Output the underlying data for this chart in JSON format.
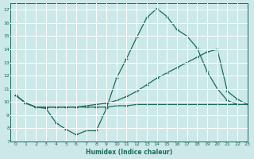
{
  "xlabel": "Humidex (Indice chaleur)",
  "xlim": [
    -0.5,
    23
  ],
  "ylim": [
    7,
    17.5
  ],
  "xticks": [
    0,
    1,
    2,
    3,
    4,
    5,
    6,
    7,
    8,
    9,
    10,
    11,
    12,
    13,
    14,
    15,
    16,
    17,
    18,
    19,
    20,
    21,
    22,
    23
  ],
  "yticks": [
    7,
    8,
    9,
    10,
    11,
    12,
    13,
    14,
    15,
    16,
    17
  ],
  "bg_color": "#cce8e8",
  "grid_color": "#b0d8d8",
  "line_color": "#1a6b5a",
  "line1_x": [
    0,
    1,
    2,
    3,
    4,
    5,
    6,
    7,
    8,
    9,
    10,
    11,
    12,
    13,
    14,
    15,
    16,
    17,
    18,
    19,
    20,
    21,
    22
  ],
  "line1_y": [
    10.5,
    9.9,
    9.6,
    9.5,
    8.4,
    7.9,
    7.5,
    7.8,
    7.8,
    9.5,
    11.8,
    13.3,
    14.9,
    16.4,
    17.1,
    16.5,
    15.5,
    15.0,
    14.1,
    12.3,
    11.0,
    10.1,
    9.8
  ],
  "line2_x": [
    0,
    1,
    2,
    3,
    4,
    5,
    6,
    7,
    8,
    9,
    10,
    11,
    12,
    13,
    14,
    15,
    16,
    17,
    18,
    19,
    20,
    21,
    22,
    23
  ],
  "line2_y": [
    10.5,
    9.9,
    9.6,
    9.6,
    9.6,
    9.6,
    9.6,
    9.7,
    9.8,
    9.9,
    10.1,
    10.4,
    10.8,
    11.3,
    11.8,
    12.2,
    12.6,
    13.0,
    13.4,
    13.8,
    14.0,
    10.8,
    10.2,
    9.8
  ],
  "line3_x": [
    0,
    1,
    2,
    3,
    4,
    5,
    6,
    7,
    8,
    9,
    10,
    11,
    12,
    13,
    14,
    15,
    16,
    17,
    18,
    19,
    20,
    21,
    22,
    23
  ],
  "line3_y": [
    10.5,
    9.9,
    9.6,
    9.6,
    9.6,
    9.6,
    9.6,
    9.6,
    9.6,
    9.6,
    9.7,
    9.7,
    9.8,
    9.8,
    9.8,
    9.8,
    9.8,
    9.8,
    9.8,
    9.8,
    9.8,
    9.8,
    9.8,
    9.8
  ]
}
